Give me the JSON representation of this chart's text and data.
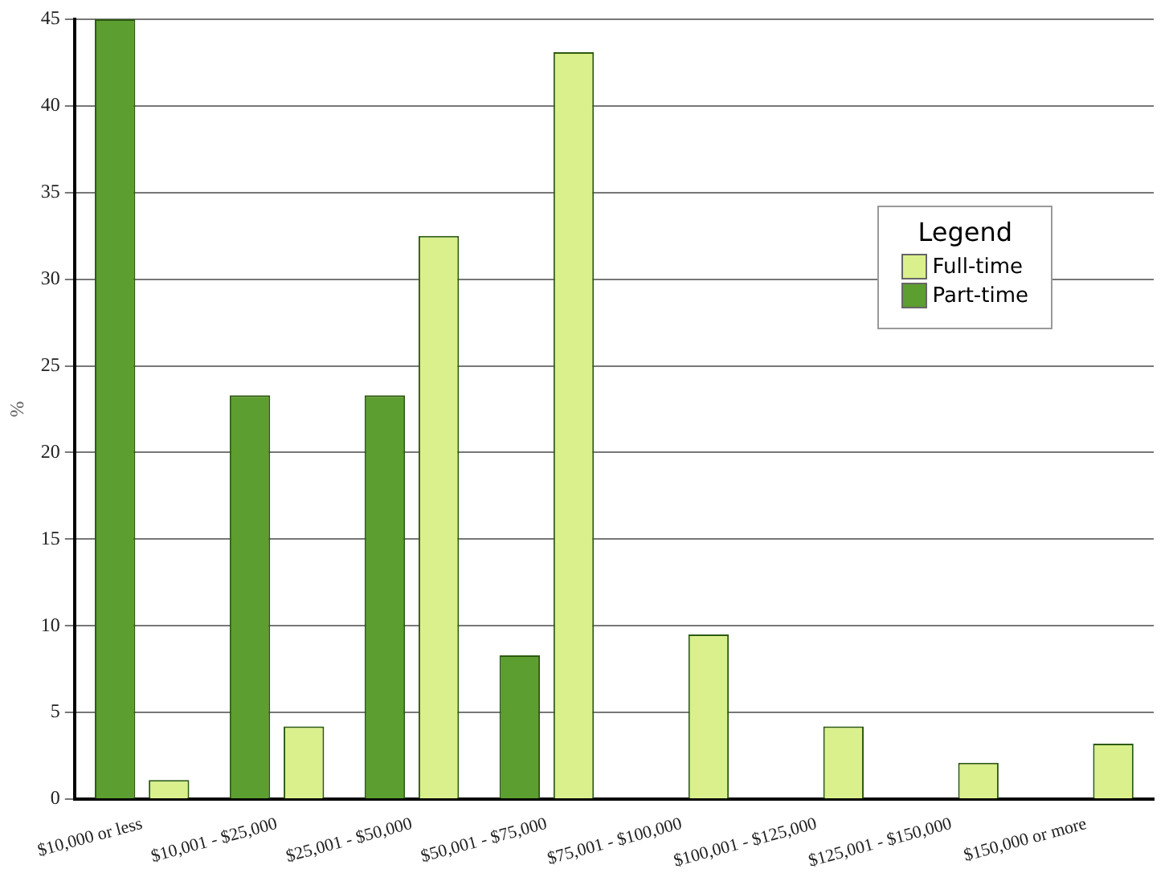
{
  "chart_data": {
    "type": "bar",
    "ylabel": "%",
    "legend_title": "Legend",
    "categories": [
      "$10,000 or less",
      "$10,001 - $25,000",
      "$25,001 - $50,000",
      "$50,001 - $75,000",
      "$75,001 - $100,000",
      "$100,001 - $125,000",
      "$125,001 - $150,000",
      "$150,000 or more"
    ],
    "series": [
      {
        "name": "Part-time",
        "color": "#5c9e30",
        "values": [
          45,
          23.3,
          23.3,
          8.3,
          0,
          0,
          0,
          0
        ]
      },
      {
        "name": "Full-time",
        "color": "#d9f08c",
        "values": [
          1.1,
          4.2,
          32.5,
          43.1,
          9.5,
          4.2,
          2.1,
          3.2
        ]
      }
    ],
    "ylim": [
      0,
      45
    ],
    "yticks": [
      0,
      5,
      10,
      15,
      20,
      25,
      30,
      35,
      40,
      45
    ],
    "grid": "y",
    "legend": "right"
  }
}
